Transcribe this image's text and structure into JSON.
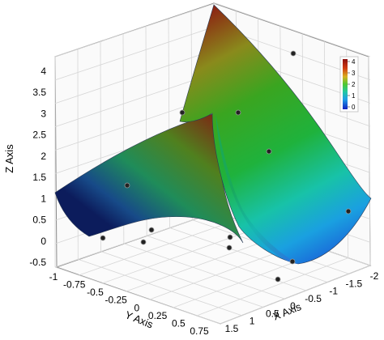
{
  "chart_data": {
    "type": "surface3d",
    "title": "",
    "colormap": [
      "#0a1a8c",
      "#1e7fd8",
      "#22c8d8",
      "#2dbf3a",
      "#8aa01e",
      "#b0621a",
      "#8c1010"
    ],
    "xlabel": "X Axis",
    "ylabel": "Y Axis",
    "zlabel": "Z Axis",
    "xlim": [
      -2,
      1.5
    ],
    "ylim": [
      -1,
      0.75
    ],
    "zlim": [
      -0.5,
      4
    ],
    "x_ticks": [
      "1.5",
      "1",
      "0.5",
      "0",
      "-0.5",
      "-1",
      "-1.5",
      "-2"
    ],
    "y_ticks": [
      "-1",
      "-0.75",
      "-0.5",
      "-0.25",
      "0",
      "0.25",
      "0.5",
      "0.75"
    ],
    "z_ticks": [
      "-0.5",
      "0",
      "0.5",
      "1",
      "1.5",
      "2",
      "2.5",
      "3",
      "3.5",
      "4"
    ],
    "colorbar": {
      "ticks": [
        "4",
        "3",
        "2",
        "1",
        "0"
      ],
      "range": [
        -0.2,
        4.3
      ]
    },
    "grid": true,
    "colorbar_placement": "top-right",
    "surface_corner_z": {
      "x_-2_y_-1": 4.3,
      "x_-2_y_0.75": -0.5,
      "x_1.5_y_-1": 1.1,
      "x_1.5_y_0.75": 0.1
    }
  }
}
